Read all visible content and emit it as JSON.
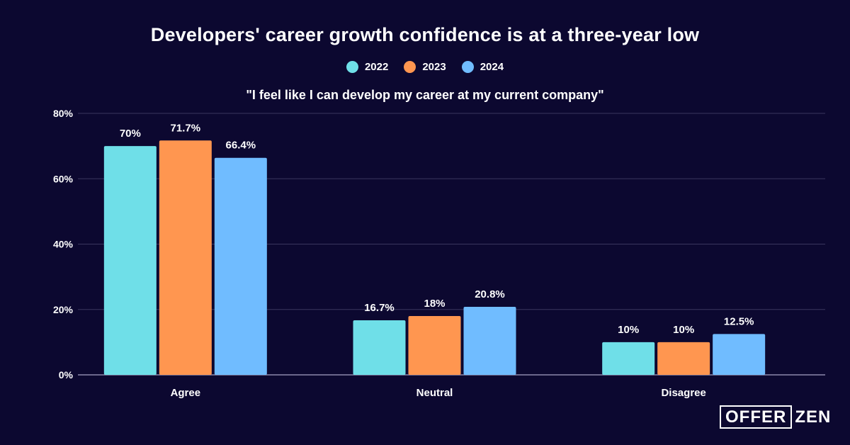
{
  "chart_data": {
    "type": "bar",
    "title": "Developers' career growth confidence is at a three-year low",
    "subtitle": "\"I feel like I can develop my career at my current company\"",
    "categories": [
      "Agree",
      "Neutral",
      "Disagree"
    ],
    "series": [
      {
        "name": "2022",
        "color": "#6fdfe8",
        "values": [
          70,
          16.7,
          10
        ],
        "labels": [
          "70%",
          "16.7%",
          "10%"
        ]
      },
      {
        "name": "2023",
        "color": "#ff9650",
        "values": [
          71.7,
          18,
          10
        ],
        "labels": [
          "71.7%",
          "18%",
          "10%"
        ]
      },
      {
        "name": "2024",
        "color": "#70bcff",
        "values": [
          66.4,
          20.8,
          12.5
        ],
        "labels": [
          "66.4%",
          "20.8%",
          "12.5%"
        ]
      }
    ],
    "ylim": [
      0,
      80
    ],
    "yticks": [
      0,
      20,
      40,
      60,
      80
    ],
    "ytick_labels": [
      "0%",
      "20%",
      "40%",
      "60%",
      "80%"
    ],
    "grid": true,
    "legend_position": "top-center"
  },
  "branding": {
    "logo_boxed": "OFFER",
    "logo_rest": "ZEN"
  }
}
